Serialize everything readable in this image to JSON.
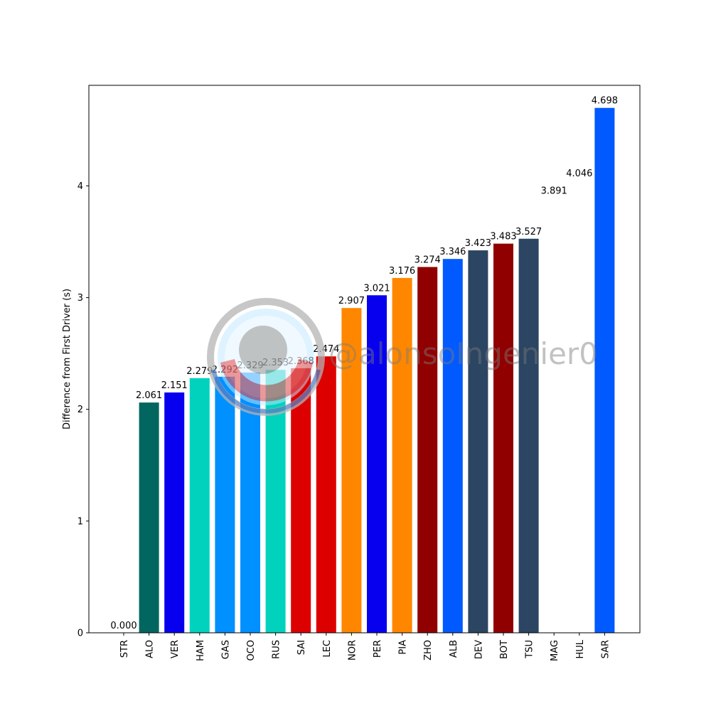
{
  "chart_data": {
    "type": "bar",
    "categories": [
      "STR",
      "ALO",
      "VER",
      "HAM",
      "GAS",
      "OCO",
      "RUS",
      "SAI",
      "LEC",
      "NOR",
      "PER",
      "PIA",
      "ZHO",
      "ALB",
      "DEV",
      "BOT",
      "TSU",
      "MAG",
      "HUL",
      "SAR"
    ],
    "values": [
      0.0,
      2.061,
      2.151,
      2.279,
      2.292,
      2.329,
      2.353,
      2.368,
      2.474,
      2.907,
      3.021,
      3.176,
      3.274,
      3.346,
      3.423,
      3.483,
      3.527,
      3.891,
      4.046,
      4.698
    ],
    "value_labels": [
      "0.000",
      "2.061",
      "2.151",
      "2.279",
      "2.292",
      "2.329",
      "2.353",
      "2.368",
      "2.474",
      "2.907",
      "3.021",
      "3.176",
      "3.274",
      "3.346",
      "3.423",
      "3.483",
      "3.527",
      "3.891",
      "4.046",
      "4.698"
    ],
    "colors": [
      "#00665f",
      "#00665f",
      "#0600ef",
      "#00d2be",
      "#0090ff",
      "#0090ff",
      "#00d2be",
      "#dc0000",
      "#dc0000",
      "#ff8700",
      "#0600ef",
      "#ff8700",
      "#900000",
      "#005aff",
      "#2b4562",
      "#900000",
      "#2b4562",
      "#ffffff",
      "#ffffff",
      "#005aff"
    ],
    "ylabel": "Difference from First Driver (s)",
    "xlabel": "",
    "ylim": [
      0,
      4.9
    ],
    "yticks": [
      0,
      1,
      2,
      3,
      4
    ],
    "grid": false
  },
  "watermark": {
    "text": "@alonsoIngenier0"
  }
}
